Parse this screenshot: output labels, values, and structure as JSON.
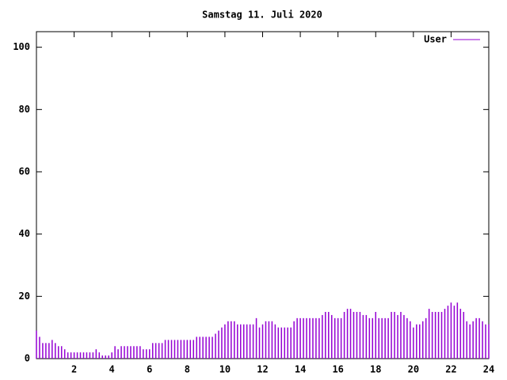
{
  "chart_data": {
    "type": "impulses",
    "title": "Samstag 11. Juli 2020",
    "series": [
      {
        "name": "User",
        "color": "#9400d3",
        "x": [
          0,
          0.167,
          0.333,
          0.5,
          0.667,
          0.833,
          1,
          1.167,
          1.333,
          1.5,
          1.667,
          1.833,
          2,
          2.167,
          2.333,
          2.5,
          2.667,
          2.833,
          3,
          3.167,
          3.333,
          3.5,
          3.667,
          3.833,
          4,
          4.167,
          4.333,
          4.5,
          4.667,
          4.833,
          5,
          5.167,
          5.333,
          5.5,
          5.667,
          5.833,
          6,
          6.167,
          6.333,
          6.5,
          6.667,
          6.833,
          7,
          7.167,
          7.333,
          7.5,
          7.667,
          7.833,
          8,
          8.167,
          8.333,
          8.5,
          8.667,
          8.833,
          9,
          9.167,
          9.333,
          9.5,
          9.667,
          9.833,
          10,
          10.167,
          10.333,
          10.5,
          10.667,
          10.833,
          11,
          11.167,
          11.333,
          11.5,
          11.667,
          11.833,
          12,
          12.167,
          12.333,
          12.5,
          12.667,
          12.833,
          13,
          13.167,
          13.333,
          13.5,
          13.667,
          13.833,
          14,
          14.167,
          14.333,
          14.5,
          14.667,
          14.833,
          15,
          15.167,
          15.333,
          15.5,
          15.667,
          15.833,
          16,
          16.167,
          16.333,
          16.5,
          16.667,
          16.833,
          17,
          17.167,
          17.333,
          17.5,
          17.667,
          17.833,
          18,
          18.167,
          18.333,
          18.5,
          18.667,
          18.833,
          19,
          19.167,
          19.333,
          19.5,
          19.667,
          19.833,
          20,
          20.167,
          20.333,
          20.5,
          20.667,
          20.833,
          21,
          21.167,
          21.333,
          21.5,
          21.667,
          21.833,
          22,
          22.167,
          22.333,
          22.5,
          22.667,
          22.833,
          23,
          23.167,
          23.333,
          23.5,
          23.667,
          23.833,
          24
        ],
        "values": [
          9,
          7,
          5,
          5,
          5,
          6,
          5,
          4,
          4,
          3,
          2,
          2,
          2,
          2,
          2,
          2,
          2,
          2,
          2,
          3,
          2,
          1,
          1,
          1,
          2,
          4,
          3,
          4,
          4,
          4,
          4,
          4,
          4,
          4,
          3,
          3,
          3,
          5,
          5,
          5,
          5,
          6,
          6,
          6,
          6,
          6,
          6,
          6,
          6,
          6,
          6,
          7,
          7,
          7,
          7,
          7,
          7,
          8,
          9,
          10,
          11,
          12,
          12,
          12,
          11,
          11,
          11,
          11,
          11,
          11,
          13,
          10,
          11,
          12,
          12,
          12,
          11,
          10,
          10,
          10,
          10,
          10,
          12,
          13,
          13,
          13,
          13,
          13,
          13,
          13,
          13,
          14,
          15,
          15,
          14,
          13,
          13,
          13,
          15,
          16,
          16,
          15,
          15,
          15,
          14,
          14,
          13,
          13,
          15,
          13,
          13,
          13,
          13,
          15,
          15,
          14,
          15,
          14,
          13,
          12,
          10,
          11,
          11,
          12,
          13,
          16,
          15,
          15,
          15,
          15,
          16,
          17,
          18,
          17,
          18,
          16,
          15,
          12,
          11,
          12,
          13,
          13,
          12,
          11,
          11
        ]
      }
    ],
    "xlim": [
      0,
      24
    ],
    "xticks": [
      2,
      4,
      6,
      8,
      10,
      12,
      14,
      16,
      18,
      20,
      22,
      24
    ],
    "ylim": [
      0,
      105
    ],
    "yticks": [
      0,
      20,
      40,
      60,
      80,
      100
    ]
  }
}
